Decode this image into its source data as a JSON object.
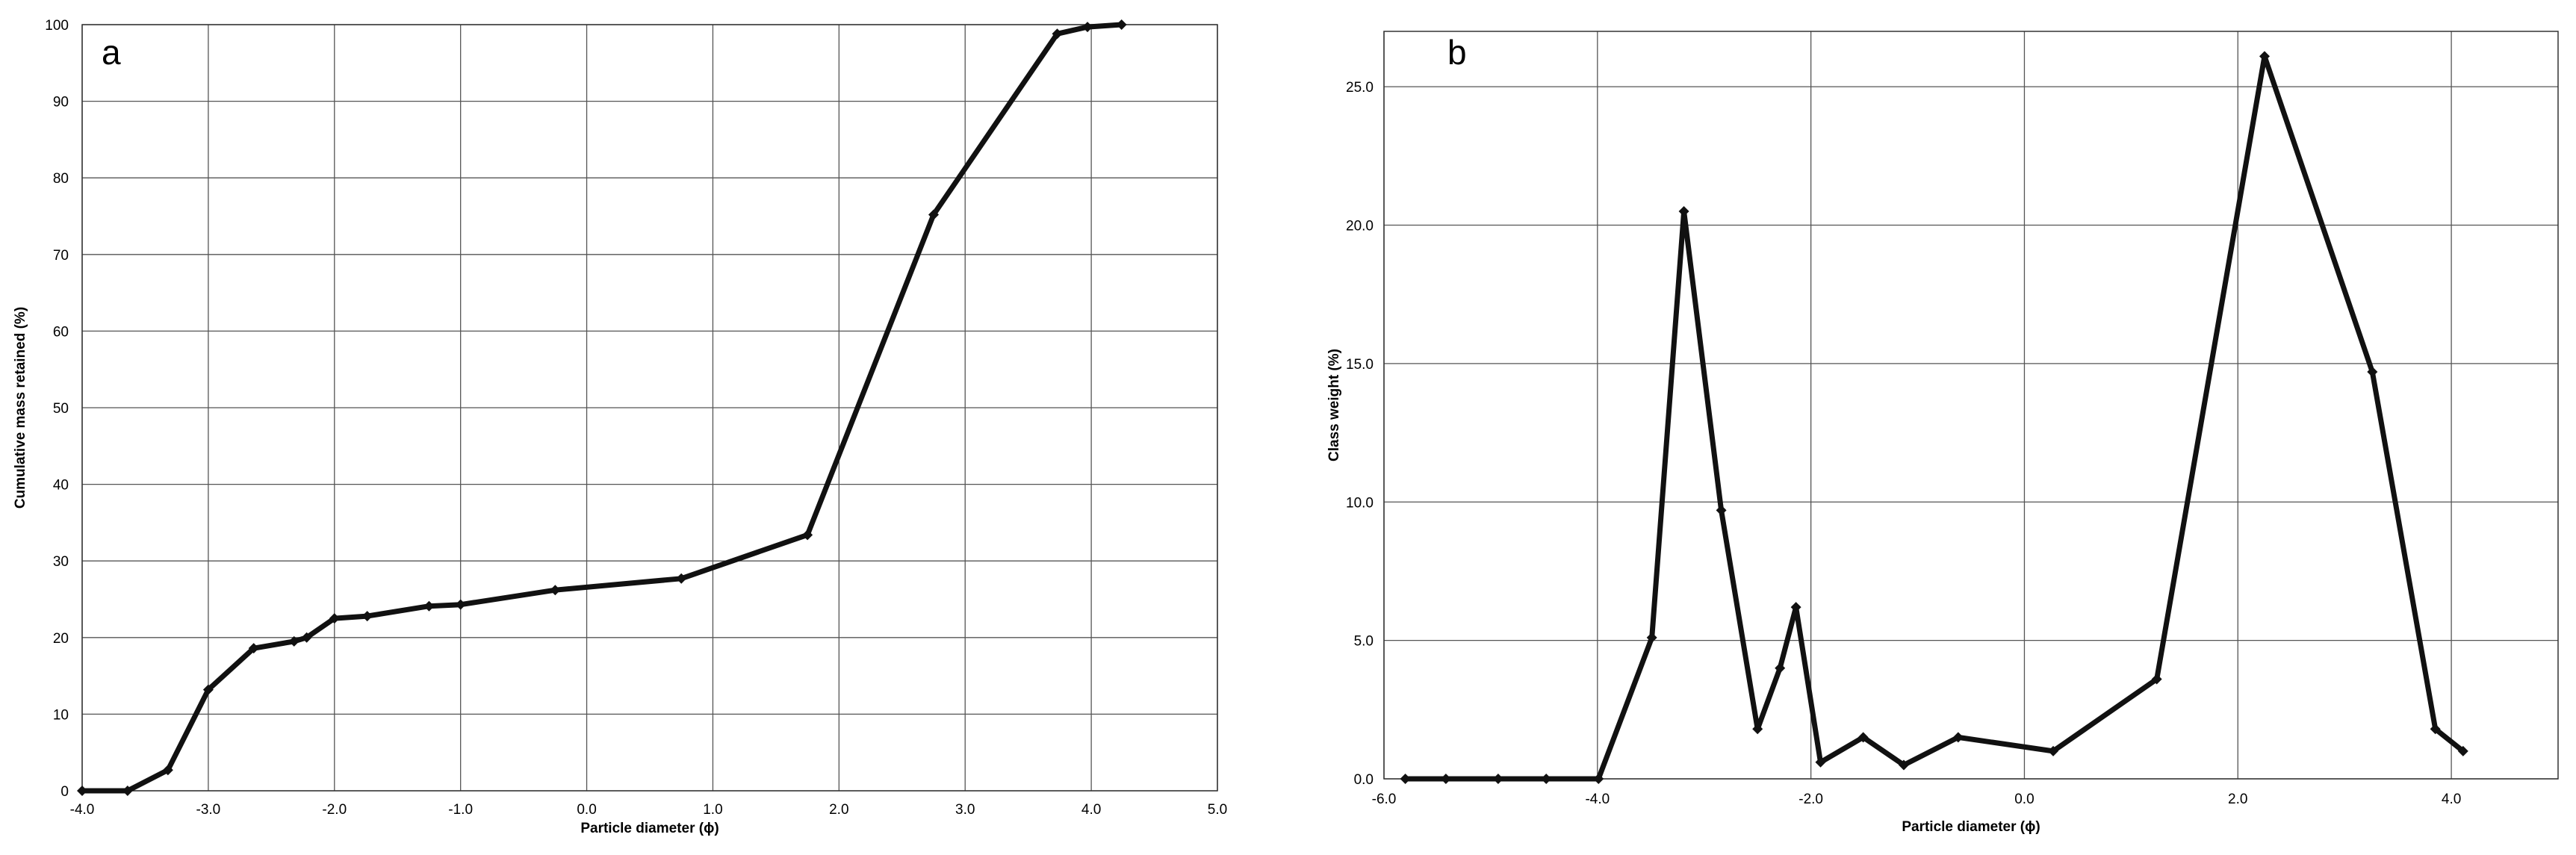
{
  "chart_data": [
    {
      "type": "line",
      "panel_label": "a",
      "xlabel": "Particle diameter (ϕ)",
      "ylabel": "Cumulative mass retained (%)",
      "xlim": [
        -4.0,
        5.0
      ],
      "ylim": [
        0,
        100
      ],
      "x_ticks": [
        -4,
        -3,
        -2,
        -1,
        0,
        1,
        2,
        3,
        4,
        5
      ],
      "x_tick_labels": [
        "-4.0",
        "-3.0",
        "-2.0",
        "-1.0",
        "0.0",
        "1.0",
        "2.0",
        "3.0",
        "4.0",
        "5.0"
      ],
      "y_ticks": [
        0,
        10,
        20,
        30,
        40,
        50,
        60,
        70,
        80,
        90,
        100
      ],
      "y_tick_labels": [
        "0",
        "10",
        "20",
        "30",
        "40",
        "50",
        "60",
        "70",
        "80",
        "90",
        "100"
      ],
      "grid": true,
      "series": [
        {
          "x": [
            -4.0,
            -3.64,
            -3.32,
            -3.0,
            -2.64,
            -2.32,
            -2.22,
            -2.0,
            -1.74,
            -1.25,
            -1.0,
            -0.25,
            0.75,
            1.75,
            2.75,
            3.73,
            3.97,
            4.24
          ],
          "y": [
            0.0,
            0.0,
            2.7,
            13.2,
            18.6,
            19.5,
            20.0,
            22.5,
            22.8,
            24.1,
            24.3,
            26.2,
            27.7,
            33.4,
            75.2,
            98.8,
            99.7,
            100.0
          ]
        }
      ]
    },
    {
      "type": "line",
      "panel_label": "b",
      "xlabel": "Particle diameter (ϕ)",
      "ylabel": "Class weight (%)",
      "xlim": [
        -6.0,
        5.0
      ],
      "ylim": [
        0,
        27
      ],
      "x_ticks": [
        -6,
        -4,
        -2,
        0,
        2,
        4
      ],
      "x_tick_labels": [
        "-6.0",
        "-4.0",
        "-2.0",
        "0.0",
        "2.0",
        "4.0"
      ],
      "y_ticks": [
        0,
        5,
        10,
        15,
        20,
        25
      ],
      "y_tick_labels": [
        "0.0",
        "5.0",
        "10.0",
        "15.0",
        "20.0",
        "25.0"
      ],
      "grid": true,
      "series": [
        {
          "x": [
            -5.8,
            -5.42,
            -4.93,
            -4.48,
            -3.99,
            -3.49,
            -3.19,
            -2.84,
            -2.5,
            -2.29,
            -2.14,
            -1.91,
            -1.51,
            -1.13,
            -0.62,
            0.27,
            1.24,
            2.25,
            3.26,
            3.85,
            4.11
          ],
          "y": [
            0.0,
            0.0,
            0.0,
            0.0,
            0.0,
            5.1,
            20.5,
            9.7,
            1.8,
            4.0,
            6.2,
            0.6,
            1.5,
            0.5,
            1.5,
            1.0,
            3.6,
            26.1,
            14.7,
            1.8,
            1.0
          ]
        }
      ]
    }
  ]
}
